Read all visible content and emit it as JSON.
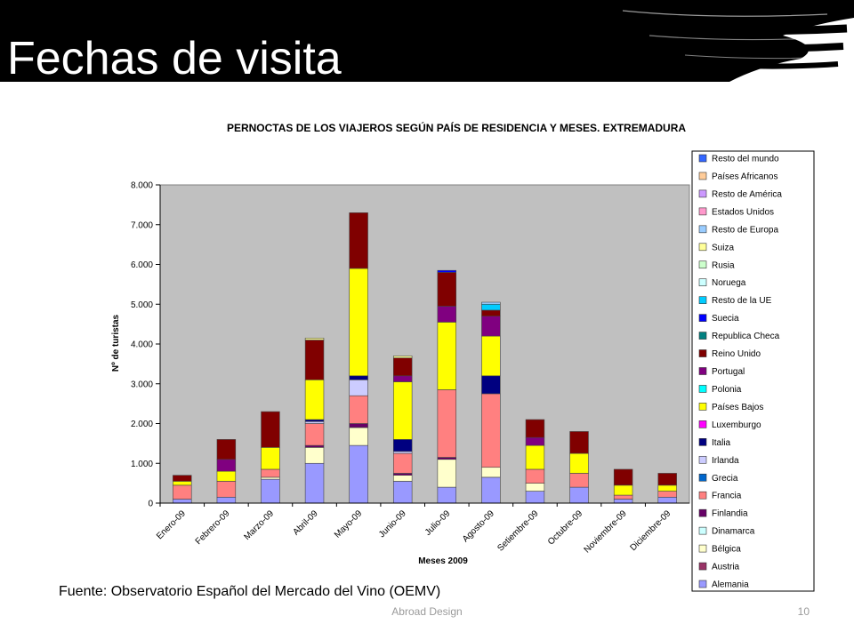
{
  "slide": {
    "title": "Fechas de visita",
    "source": "Fuente: Observatorio Español del Mercado del Vino (OEMV)",
    "footer": "Abroad Design",
    "page_number": "10"
  },
  "chart_data": {
    "type": "bar",
    "stacked": true,
    "title": "PERNOCTAS DE LOS VIAJEROS SEGÚN PAÍS DE RESIDENCIA Y MESES. EXTREMADURA",
    "xlabel": "Meses 2009",
    "ylabel": "Nº de turistas",
    "ylim": [
      0,
      8000
    ],
    "yticks": [
      0,
      1000,
      2000,
      3000,
      4000,
      5000,
      6000,
      7000,
      8000
    ],
    "ytick_labels": [
      "0",
      "1.000",
      "2.000",
      "3.000",
      "4.000",
      "5.000",
      "6.000",
      "7.000",
      "8.000"
    ],
    "grid": false,
    "legend_position": "right",
    "categories": [
      "Enero-09",
      "Febrero-09",
      "Marzo-09",
      "Abril-09",
      "Mayo-09",
      "Junio-09",
      "Julio-09",
      "Agosto-09",
      "Setiembre-09",
      "Octubre-09",
      "Noviembre-09",
      "Diciembre-09"
    ],
    "series": [
      {
        "name": "Alemania",
        "color": "#9999FF",
        "values": [
          100,
          150,
          600,
          1000,
          1450,
          550,
          400,
          650,
          300,
          400,
          100,
          150
        ]
      },
      {
        "name": "Austria",
        "color": "#993366",
        "values": [
          0,
          0,
          0,
          0,
          0,
          0,
          0,
          0,
          0,
          0,
          0,
          0
        ]
      },
      {
        "name": "Bélgica",
        "color": "#FFFFCC",
        "values": [
          0,
          0,
          50,
          400,
          450,
          150,
          700,
          250,
          200,
          0,
          0,
          0
        ]
      },
      {
        "name": "Dinamarca",
        "color": "#CCFFFF",
        "values": [
          0,
          0,
          0,
          0,
          0,
          0,
          0,
          0,
          0,
          0,
          0,
          0
        ]
      },
      {
        "name": "Finlandia",
        "color": "#660066",
        "values": [
          0,
          0,
          0,
          50,
          100,
          50,
          50,
          0,
          0,
          0,
          0,
          0
        ]
      },
      {
        "name": "Francia",
        "color": "#FF8080",
        "values": [
          350,
          400,
          200,
          550,
          700,
          500,
          1700,
          1850,
          350,
          350,
          100,
          150
        ]
      },
      {
        "name": "Grecia",
        "color": "#0066CC",
        "values": [
          0,
          0,
          0,
          0,
          0,
          0,
          0,
          0,
          0,
          0,
          0,
          0
        ]
      },
      {
        "name": "Irlanda",
        "color": "#CCCCFF",
        "values": [
          0,
          0,
          0,
          50,
          400,
          50,
          0,
          0,
          0,
          0,
          0,
          0
        ]
      },
      {
        "name": "Italia",
        "color": "#000080",
        "values": [
          0,
          0,
          0,
          50,
          100,
          300,
          0,
          450,
          0,
          0,
          0,
          0
        ]
      },
      {
        "name": "Luxemburgo",
        "color": "#FF00FF",
        "values": [
          0,
          0,
          0,
          0,
          0,
          0,
          0,
          0,
          0,
          0,
          0,
          0
        ]
      },
      {
        "name": "Países Bajos",
        "color": "#FFFF00",
        "values": [
          100,
          250,
          550,
          1000,
          2700,
          1450,
          1700,
          1000,
          600,
          500,
          250,
          150
        ]
      },
      {
        "name": "Polonia",
        "color": "#00FFFF",
        "values": [
          0,
          0,
          0,
          0,
          0,
          0,
          0,
          0,
          0,
          0,
          0,
          0
        ]
      },
      {
        "name": "Portugal",
        "color": "#800080",
        "values": [
          0,
          300,
          0,
          0,
          0,
          150,
          400,
          500,
          200,
          0,
          0,
          0
        ]
      },
      {
        "name": "Reino Unido",
        "color": "#800000",
        "values": [
          150,
          500,
          900,
          1000,
          1400,
          450,
          850,
          150,
          450,
          550,
          400,
          300
        ]
      },
      {
        "name": "Republica Checa",
        "color": "#008080",
        "values": [
          0,
          0,
          0,
          0,
          0,
          0,
          0,
          0,
          0,
          0,
          0,
          0
        ]
      },
      {
        "name": "Suecia",
        "color": "#0000FF",
        "values": [
          0,
          0,
          0,
          0,
          0,
          0,
          50,
          0,
          0,
          0,
          0,
          0
        ]
      },
      {
        "name": "Resto de la UE",
        "color": "#00CCFF",
        "values": [
          0,
          0,
          0,
          0,
          0,
          0,
          0,
          150,
          0,
          0,
          0,
          0
        ]
      },
      {
        "name": "Noruega",
        "color": "#CCFFFF",
        "values": [
          0,
          0,
          0,
          0,
          0,
          0,
          0,
          0,
          0,
          0,
          0,
          0
        ]
      },
      {
        "name": "Rusia",
        "color": "#CCFFCC",
        "values": [
          0,
          0,
          0,
          0,
          0,
          0,
          0,
          0,
          0,
          0,
          0,
          0
        ]
      },
      {
        "name": "Suiza",
        "color": "#FFFF99",
        "values": [
          0,
          0,
          0,
          50,
          0,
          50,
          0,
          0,
          0,
          0,
          0,
          0
        ]
      },
      {
        "name": "Resto de Europa",
        "color": "#99CCFF",
        "values": [
          0,
          0,
          0,
          0,
          0,
          0,
          0,
          50,
          0,
          0,
          0,
          0
        ]
      },
      {
        "name": "Estados Unidos",
        "color": "#FF99CC",
        "values": [
          0,
          0,
          0,
          0,
          0,
          0,
          0,
          0,
          0,
          0,
          0,
          0
        ]
      },
      {
        "name": "Resto de América",
        "color": "#CC99FF",
        "values": [
          0,
          0,
          0,
          0,
          0,
          0,
          0,
          0,
          0,
          0,
          0,
          0
        ]
      },
      {
        "name": "Países Africanos",
        "color": "#FFCC99",
        "values": [
          0,
          0,
          0,
          0,
          0,
          0,
          0,
          0,
          0,
          0,
          0,
          0
        ]
      },
      {
        "name": "Resto del mundo",
        "color": "#3366FF",
        "values": [
          0,
          0,
          0,
          0,
          0,
          0,
          0,
          0,
          0,
          0,
          0,
          0
        ]
      }
    ]
  }
}
